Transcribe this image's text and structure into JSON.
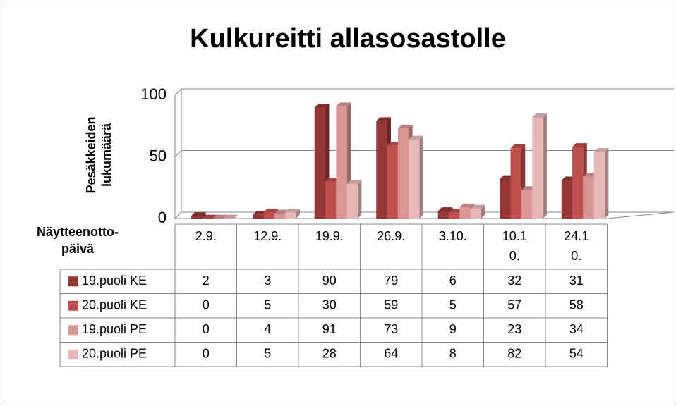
{
  "chart_data": {
    "type": "bar",
    "title": "Kulkureitti allasosastolle",
    "y_label": "Pesäkkeiden lukumäärä",
    "x_label": "Näytteenotto-päivä",
    "categories": [
      "2.9.",
      "12.9.",
      "19.9.",
      "26.9.",
      "3.10.",
      "10.10.",
      "24.10."
    ],
    "series": [
      {
        "name": "19.puoli KE",
        "color": "#943634",
        "values": [
          2,
          3,
          90,
          79,
          6,
          32,
          31
        ]
      },
      {
        "name": "20.puoli KE",
        "color": "#c0504d",
        "values": [
          0,
          5,
          30,
          59,
          5,
          57,
          58
        ]
      },
      {
        "name": "19.puoli PE",
        "color": "#d99694",
        "values": [
          0,
          4,
          91,
          73,
          9,
          23,
          34
        ]
      },
      {
        "name": "20.puoli PE",
        "color": "#e6b9b8",
        "values": [
          0,
          5,
          28,
          64,
          8,
          82,
          54
        ]
      }
    ],
    "ylim": [
      0,
      100
    ],
    "yticks": [
      0,
      50,
      100
    ],
    "grid": true,
    "data_table": true
  }
}
